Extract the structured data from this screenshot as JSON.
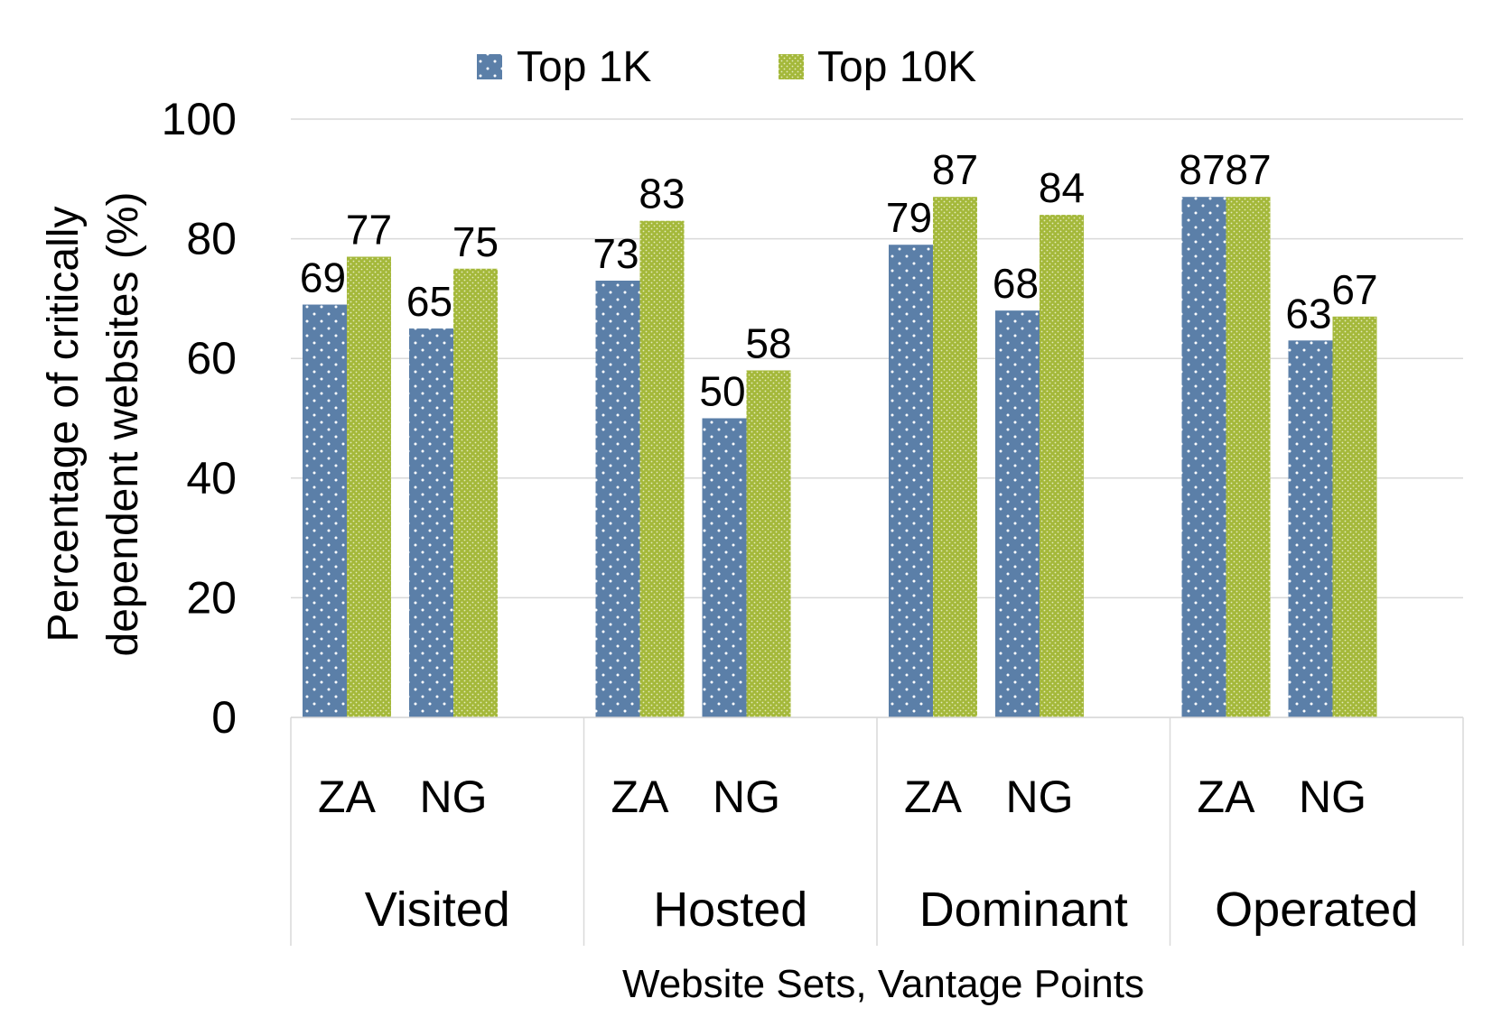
{
  "chart_data": {
    "type": "bar",
    "title": "",
    "xlabel": "Website Sets, Vantage Points",
    "ylabel": "Percentage of critically dependent websites (%)",
    "ylabel_lines": [
      "Percentage of critically",
      "dependent websites (%)"
    ],
    "ylim": [
      0,
      100
    ],
    "yticks": [
      0,
      20,
      40,
      60,
      80,
      100
    ],
    "grid": true,
    "legend_position": "top",
    "groups": [
      "Visited",
      "Hosted",
      "Dominant",
      "Operated"
    ],
    "categories": [
      "ZA",
      "NG"
    ],
    "series": [
      {
        "name": "Top 1K",
        "color": "#5b7fa8",
        "pattern": "dots",
        "values": [
          [
            69,
            65
          ],
          [
            73,
            50
          ],
          [
            79,
            68
          ],
          [
            87,
            63
          ]
        ],
        "labels": [
          [
            "69",
            "65"
          ],
          [
            "73",
            "50"
          ],
          [
            "79",
            "68"
          ],
          [
            "87",
            "63"
          ]
        ]
      },
      {
        "name": "Top 10K",
        "color": "#a4b83a",
        "pattern": "dense-dots",
        "values": [
          [
            77,
            75
          ],
          [
            83,
            58
          ],
          [
            87,
            84
          ],
          [
            87,
            67
          ]
        ],
        "labels": [
          [
            "77",
            "75"
          ],
          [
            "83",
            "58"
          ],
          [
            "87",
            "84"
          ],
          [
            "87",
            "67"
          ]
        ]
      }
    ]
  }
}
